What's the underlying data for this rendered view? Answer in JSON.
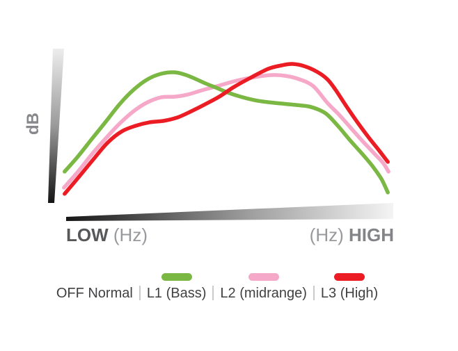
{
  "axes": {
    "y_label": "dB",
    "x_left_bold": "LOW",
    "x_left_unit": "(Hz)",
    "x_right_unit": "(Hz)",
    "x_right_bold": "HIGH"
  },
  "legend": {
    "items": [
      {
        "label": "OFF Normal",
        "swatch": null
      },
      {
        "label": "L1 (Bass)",
        "swatch": "#7bb743"
      },
      {
        "label": "L2 (midrange)",
        "swatch": "#f6a8c8"
      },
      {
        "label": "L3 (High)",
        "swatch": "#ec1c24"
      }
    ]
  },
  "chart_data": {
    "type": "line",
    "title": "",
    "xlabel": "Frequency (Hz) from LOW to HIGH (no numeric scale shown)",
    "ylabel": "dB (no numeric scale shown)",
    "x_axis_end_labels": [
      "LOW (Hz)",
      "(Hz) HIGH"
    ],
    "axis_style": "gradient wedge axes, no ticks, no gridlines",
    "legend_position": "bottom",
    "legend_entries": [
      "OFF Normal",
      "L1 (Bass)",
      "L2 (midrange)",
      "L3 (High)"
    ],
    "point_units": "normalized 0-100 (x: LOW to HIGH position, y: relative dB level)",
    "xlim": [
      0,
      100
    ],
    "ylim": [
      0,
      100
    ],
    "series": [
      {
        "name": "L1 (Bass)",
        "color": "#7bb743",
        "z": 2,
        "points": [
          [
            0.6,
            20.3
          ],
          [
            4.7,
            30.2
          ],
          [
            8.9,
            41.4
          ],
          [
            13.2,
            52.7
          ],
          [
            17.4,
            64.0
          ],
          [
            21.7,
            73.4
          ],
          [
            26.0,
            80.2
          ],
          [
            30.2,
            83.8
          ],
          [
            34.0,
            84.7
          ],
          [
            37.2,
            83.3
          ],
          [
            40.4,
            80.6
          ],
          [
            43.6,
            77.5
          ],
          [
            46.8,
            74.8
          ],
          [
            50.4,
            71.6
          ],
          [
            54.3,
            68.9
          ],
          [
            58.5,
            66.7
          ],
          [
            62.8,
            65.3
          ],
          [
            67.0,
            64.4
          ],
          [
            71.3,
            63.5
          ],
          [
            75.1,
            62.6
          ],
          [
            78.3,
            60.4
          ],
          [
            80.9,
            57.2
          ],
          [
            84.5,
            49.1
          ],
          [
            87.9,
            40.5
          ],
          [
            91.5,
            32.0
          ],
          [
            94.7,
            23.9
          ],
          [
            97.5,
            15.3
          ],
          [
            99.4,
            6.8
          ]
        ]
      },
      {
        "name": "L2 (midrange)",
        "color": "#f6a8c8",
        "z": 1,
        "points": [
          [
            0.4,
            9.9
          ],
          [
            4.7,
            20.3
          ],
          [
            8.9,
            31.5
          ],
          [
            13.2,
            41.9
          ],
          [
            17.4,
            51.4
          ],
          [
            21.7,
            59.5
          ],
          [
            26.0,
            65.3
          ],
          [
            30.2,
            68.5
          ],
          [
            34.5,
            68.9
          ],
          [
            38.3,
            70.3
          ],
          [
            42.6,
            73.0
          ],
          [
            47.9,
            76.1
          ],
          [
            53.2,
            79.3
          ],
          [
            58.5,
            81.5
          ],
          [
            63.8,
            82.9
          ],
          [
            68.1,
            82.4
          ],
          [
            72.3,
            80.2
          ],
          [
            76.6,
            75.7
          ],
          [
            80.9,
            64.9
          ],
          [
            84.5,
            57.2
          ],
          [
            87.9,
            49.1
          ],
          [
            91.5,
            40.5
          ],
          [
            95.1,
            32.4
          ],
          [
            97.9,
            26.1
          ],
          [
            99.6,
            20.3
          ]
        ]
      },
      {
        "name": "L3 (High)",
        "color": "#ec1c24",
        "z": 3,
        "points": [
          [
            0.6,
            5.9
          ],
          [
            4.9,
            16.7
          ],
          [
            9.6,
            28.8
          ],
          [
            13.8,
            39.2
          ],
          [
            18.1,
            46.4
          ],
          [
            22.3,
            50.0
          ],
          [
            26.6,
            52.3
          ],
          [
            30.9,
            53.2
          ],
          [
            35.1,
            55.4
          ],
          [
            39.4,
            59.5
          ],
          [
            43.6,
            64.0
          ],
          [
            47.9,
            68.9
          ],
          [
            52.1,
            74.8
          ],
          [
            57.4,
            81.1
          ],
          [
            62.8,
            86.9
          ],
          [
            67.0,
            89.2
          ],
          [
            70.2,
            90.1
          ],
          [
            73.8,
            88.7
          ],
          [
            77.7,
            85.1
          ],
          [
            80.9,
            80.2
          ],
          [
            83.4,
            73.4
          ],
          [
            86.6,
            63.1
          ],
          [
            90.4,
            51.4
          ],
          [
            93.6,
            42.3
          ],
          [
            96.8,
            33.8
          ],
          [
            99.4,
            26.6
          ]
        ]
      }
    ]
  }
}
